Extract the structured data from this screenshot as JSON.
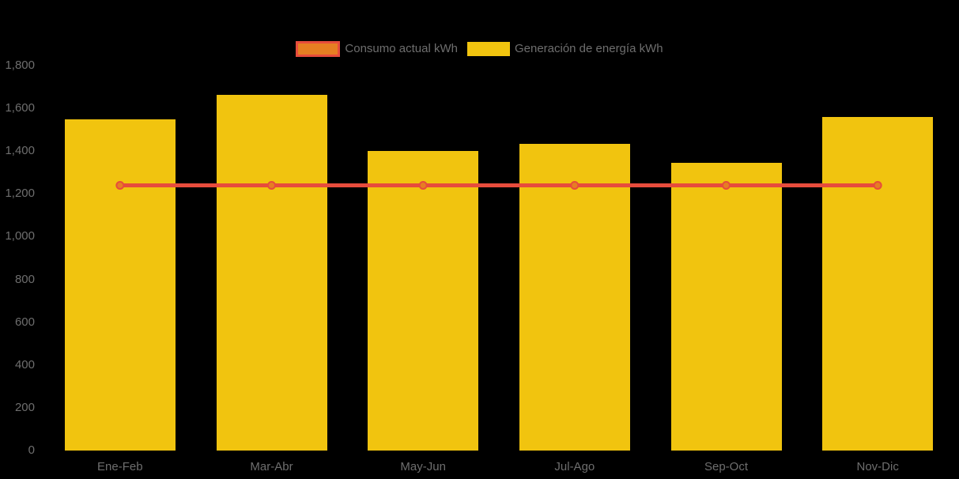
{
  "background_color": "#000000",
  "text_color": "#6E6E6E",
  "legend": {
    "items": [
      {
        "label": "Consumo actual kWh",
        "marker_fill": "#E67E22",
        "marker_border": "#E74C3C"
      },
      {
        "label": "Generación de energía kWh",
        "marker_fill": "#F1C40F",
        "marker_border": "#F1C40F"
      }
    ]
  },
  "chart_data": {
    "type": "bar+line",
    "title": "",
    "xlabel": "",
    "ylabel": "",
    "categories": [
      "Ene-Feb",
      "Mar-Abr",
      "May-Jun",
      "Jul-Ago",
      "Sep-Oct",
      "Nov-Dic"
    ],
    "series": [
      {
        "name": "Consumo actual kWh",
        "type": "line",
        "color": "#E74C3C",
        "marker_fill": "#E67E22",
        "values": [
          1240,
          1240,
          1240,
          1240,
          1240,
          1240
        ]
      },
      {
        "name": "Generación de energía kWh",
        "type": "bar",
        "color": "#F1C40F",
        "values": [
          1550,
          1665,
          1400,
          1435,
          1345,
          1560
        ]
      }
    ],
    "ylim": [
      0,
      1800
    ],
    "ytick_step": 200,
    "ytick_labels": [
      "0",
      "200",
      "400",
      "600",
      "800",
      "1,000",
      "1,200",
      "1,400",
      "1,600",
      "1,800"
    ],
    "grid": false,
    "legend_position": "top"
  }
}
